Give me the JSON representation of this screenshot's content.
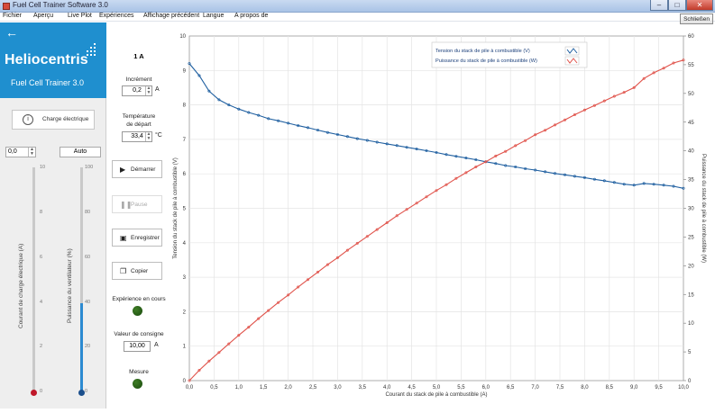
{
  "window": {
    "title": "Fuel Cell Trainer Software 3.0",
    "close_button": "Schließen"
  },
  "menu": [
    "Fichier",
    "Aperçu",
    "Live Plot",
    "Expériences",
    "Affichage précédent",
    "Langue",
    "A propos de"
  ],
  "brand": {
    "name": "Heliocentris",
    "subtitle": "Fuel Cell Trainer 3.0"
  },
  "sidebar": {
    "charge_button": "Charge électrique",
    "charge_value": "0,0",
    "auto_button": "Auto",
    "slider_current": {
      "label": "Courant de charge électrique (A)",
      "ticks": [
        "10",
        "8",
        "6",
        "4",
        "2",
        "0"
      ],
      "value": 0,
      "knob_color": "#c0182a"
    },
    "slider_fan": {
      "label": "Puissance du ventilateur (%)",
      "ticks": [
        "100",
        "80",
        "60",
        "40",
        "20",
        "0"
      ],
      "value": 40,
      "knob_color": "#1b4f8c"
    }
  },
  "controls": {
    "current_value": "1 A",
    "increment_label": "Incrément",
    "increment_value": "0,2",
    "increment_unit": "A",
    "start_temp_label_1": "Température",
    "start_temp_label_2": "de départ",
    "start_temp_value": "33,4",
    "start_temp_unit": "°C",
    "start_button": "Démarrer",
    "pause_button": "Pause",
    "save_button": "Enregistrer",
    "copy_button": "Copier",
    "experiment_status_label": "Expérience en cours",
    "setpoint_label": "Valeur de consigne",
    "setpoint_value": "10,00",
    "setpoint_unit": "A",
    "measure_label": "Mesure"
  },
  "chart_data": {
    "type": "line",
    "xlabel": "Courant du stack de pile à combustible (A)",
    "ylabel": "Tension du stack de pile à combustible (V)",
    "y2label": "Puissance du stack de pile à combustible (W)",
    "xlim": [
      0,
      10
    ],
    "ylim": [
      0,
      10
    ],
    "y2lim": [
      0,
      60
    ],
    "x_ticks": [
      "0,0",
      "0,5",
      "1,0",
      "1,5",
      "2,0",
      "2,5",
      "3,0",
      "3,5",
      "4,0",
      "4,5",
      "5,0",
      "5,5",
      "6,0",
      "6,5",
      "7,0",
      "7,5",
      "8,0",
      "8,5",
      "9,0",
      "9,5",
      "10,0"
    ],
    "y_ticks": [
      "0",
      "1",
      "2",
      "3",
      "4",
      "5",
      "6",
      "7",
      "8",
      "9",
      "10"
    ],
    "y2_ticks": [
      "0",
      "5",
      "10",
      "15",
      "20",
      "25",
      "30",
      "35",
      "40",
      "45",
      "50",
      "55",
      "60"
    ],
    "grid": true,
    "legend_position": "top-right",
    "series": [
      {
        "name": "Tension du stack de pile à combustible (V)",
        "axis": "left",
        "color": "#1f5fa0",
        "x": [
          0.0,
          0.2,
          0.4,
          0.6,
          0.8,
          1.0,
          1.2,
          1.4,
          1.6,
          1.8,
          2.0,
          2.2,
          2.4,
          2.6,
          2.8,
          3.0,
          3.2,
          3.4,
          3.6,
          3.8,
          4.0,
          4.2,
          4.4,
          4.6,
          4.8,
          5.0,
          5.2,
          5.4,
          5.6,
          5.8,
          6.0,
          6.2,
          6.4,
          6.6,
          6.8,
          7.0,
          7.2,
          7.4,
          7.6,
          7.8,
          8.0,
          8.2,
          8.4,
          8.6,
          8.8,
          9.0,
          9.2,
          9.4,
          9.6,
          9.8,
          10.0
        ],
        "values": [
          9.2,
          8.85,
          8.4,
          8.15,
          8.0,
          7.88,
          7.78,
          7.7,
          7.6,
          7.54,
          7.47,
          7.4,
          7.34,
          7.27,
          7.2,
          7.14,
          7.08,
          7.02,
          6.97,
          6.92,
          6.87,
          6.82,
          6.77,
          6.72,
          6.67,
          6.62,
          6.56,
          6.51,
          6.46,
          6.41,
          6.35,
          6.3,
          6.24,
          6.2,
          6.15,
          6.11,
          6.06,
          6.01,
          5.97,
          5.93,
          5.89,
          5.84,
          5.8,
          5.75,
          5.7,
          5.67,
          5.72,
          5.7,
          5.67,
          5.64,
          5.58
        ]
      },
      {
        "name": "Puissance du stack de pile à combustible (W)",
        "axis": "right",
        "color": "#e0524a",
        "x": [
          0.0,
          0.2,
          0.4,
          0.6,
          0.8,
          1.0,
          1.2,
          1.4,
          1.6,
          1.8,
          2.0,
          2.2,
          2.4,
          2.6,
          2.8,
          3.0,
          3.2,
          3.4,
          3.6,
          3.8,
          4.0,
          4.2,
          4.4,
          4.6,
          4.8,
          5.0,
          5.2,
          5.4,
          5.6,
          5.8,
          6.0,
          6.2,
          6.4,
          6.6,
          6.8,
          7.0,
          7.2,
          7.4,
          7.6,
          7.8,
          8.0,
          8.2,
          8.4,
          8.6,
          8.8,
          9.0,
          9.2,
          9.4,
          9.6,
          9.8,
          10.0
        ],
        "values": [
          0.0,
          1.8,
          3.4,
          4.9,
          6.4,
          7.9,
          9.3,
          10.8,
          12.2,
          13.6,
          14.9,
          16.3,
          17.6,
          18.9,
          20.2,
          21.4,
          22.7,
          23.9,
          25.1,
          26.3,
          27.5,
          28.7,
          29.8,
          30.9,
          32.0,
          33.1,
          34.1,
          35.2,
          36.2,
          37.2,
          38.1,
          39.1,
          39.9,
          40.9,
          41.8,
          42.8,
          43.6,
          44.5,
          45.4,
          46.3,
          47.1,
          47.9,
          48.7,
          49.5,
          50.2,
          51.0,
          52.6,
          53.6,
          54.4,
          55.3,
          55.8
        ]
      }
    ]
  }
}
